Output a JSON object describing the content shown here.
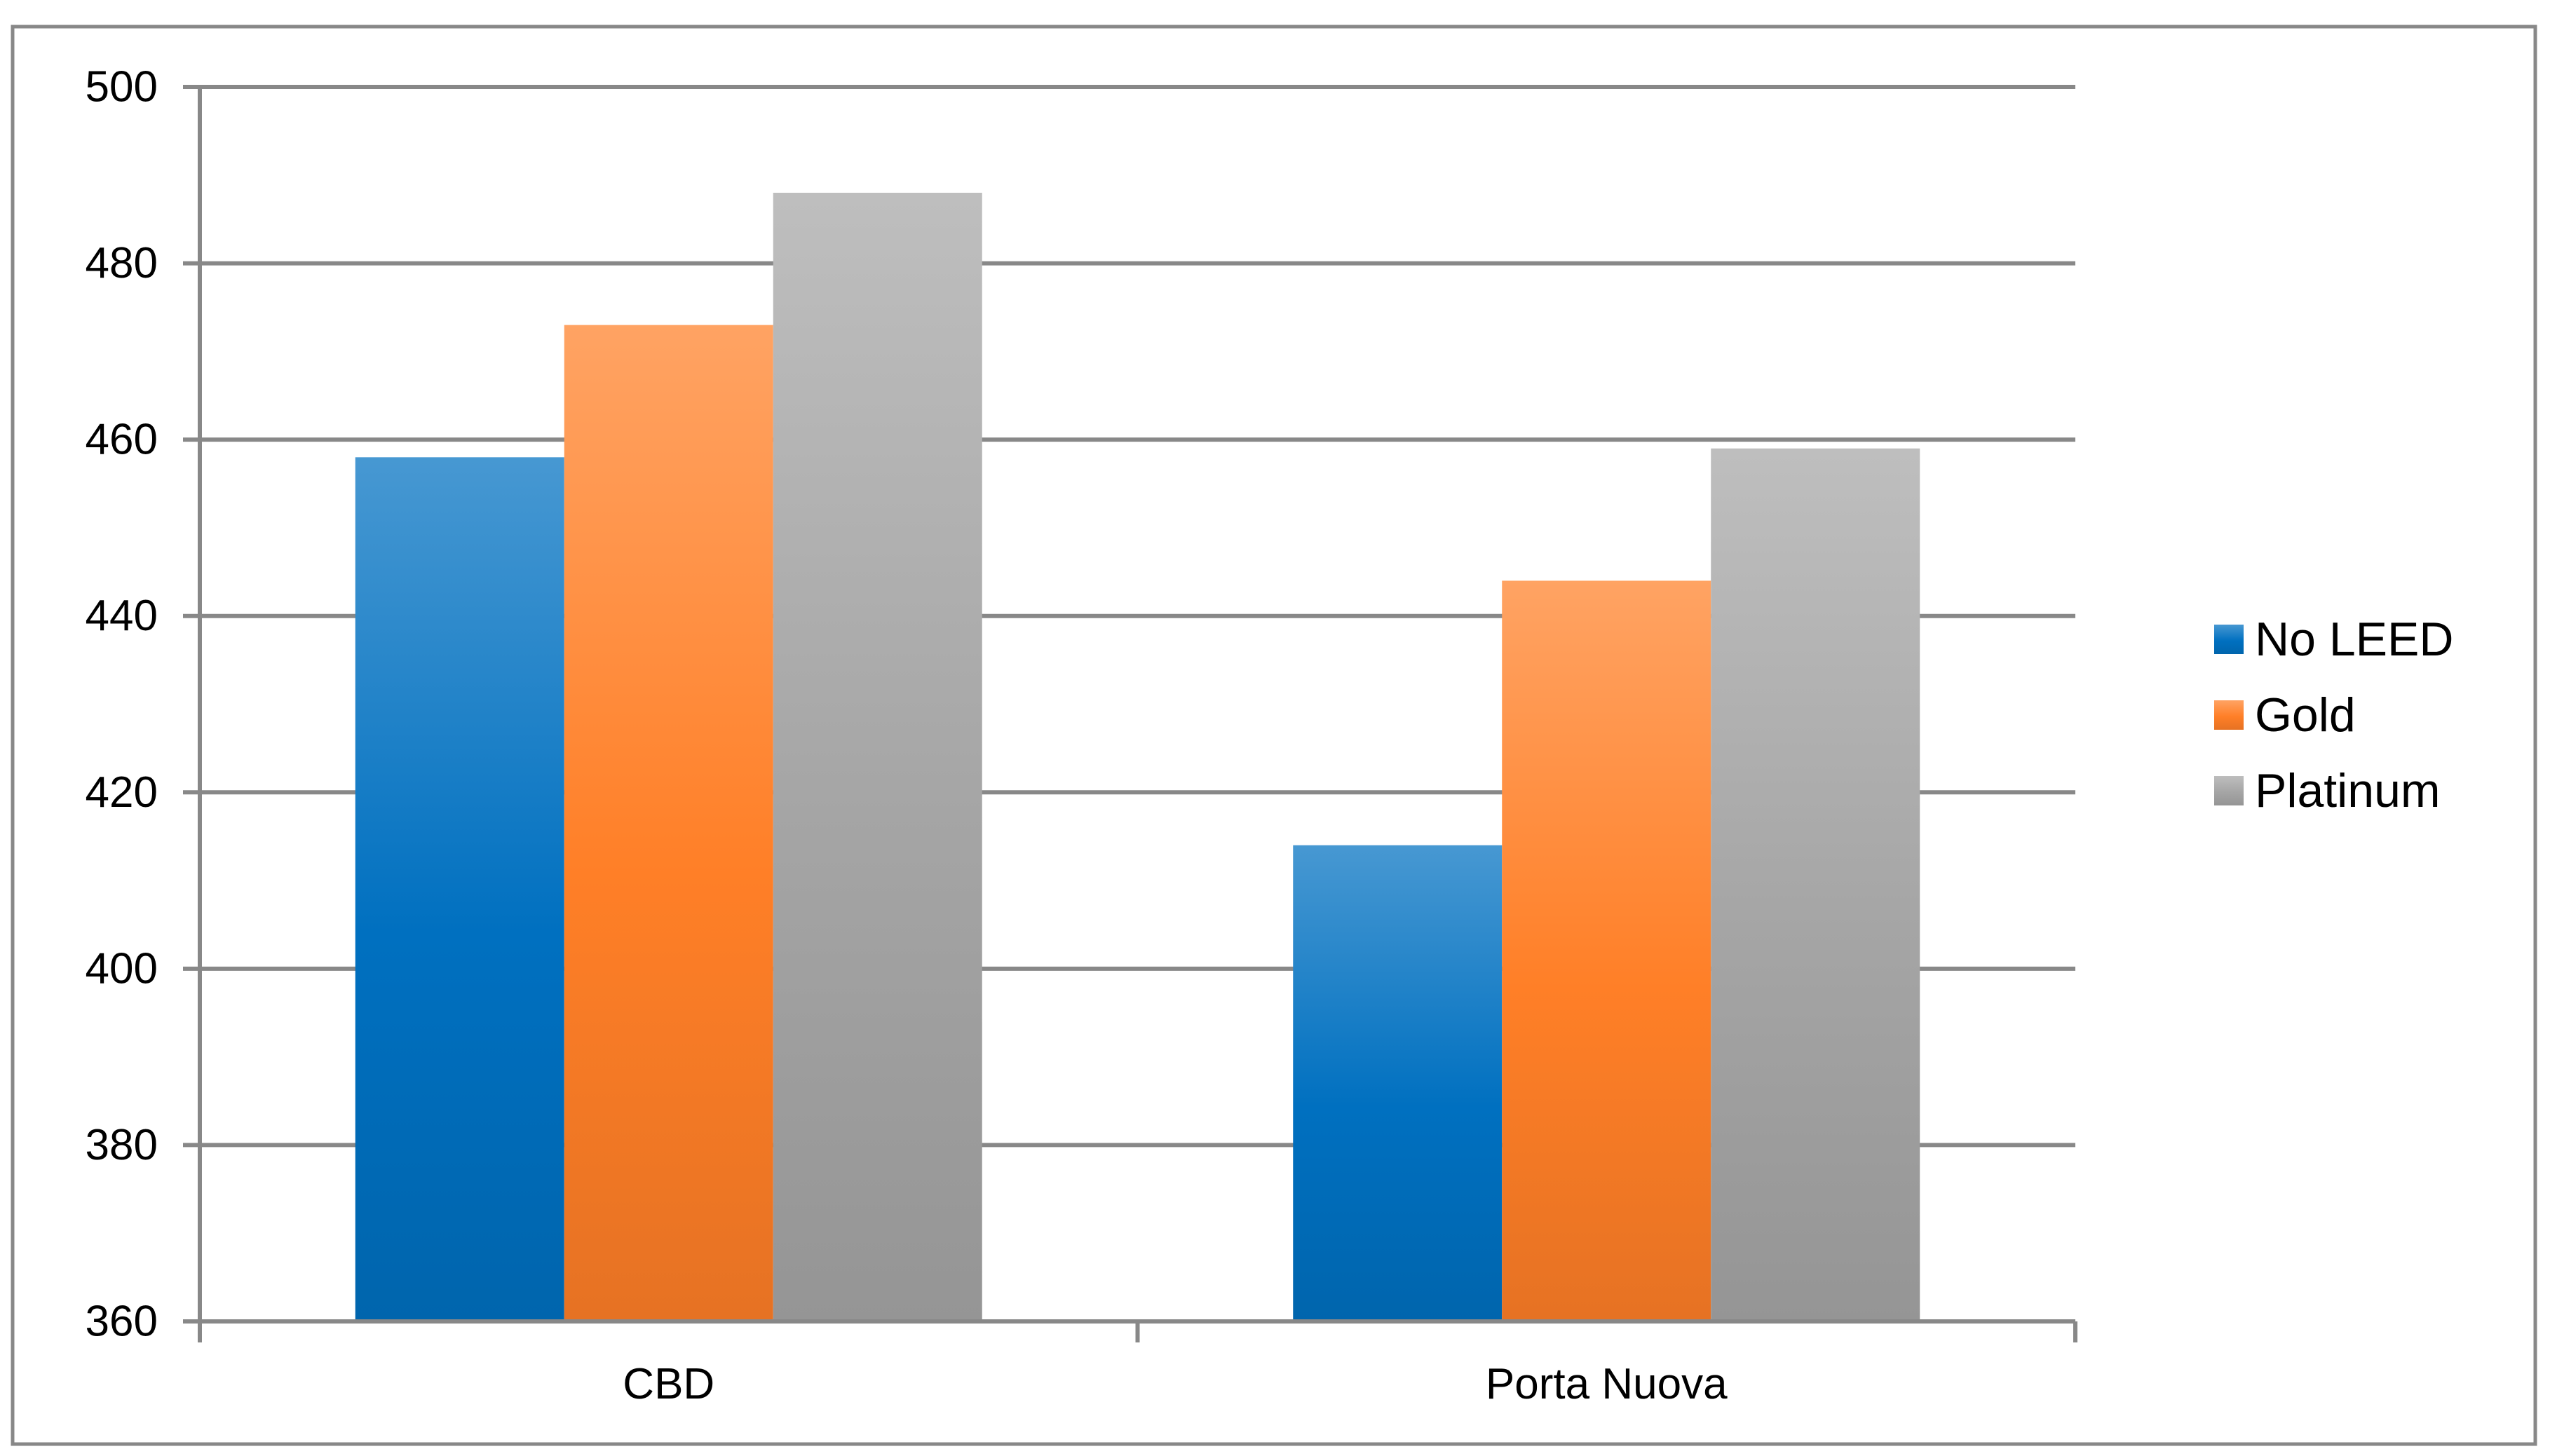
{
  "chart_data": {
    "type": "bar",
    "title": "",
    "xlabel": "",
    "ylabel": "",
    "categories": [
      "CBD",
      "Porta Nuova"
    ],
    "series": [
      {
        "name": "No LEED",
        "values": [
          458,
          414
        ],
        "color": "#0070C0"
      },
      {
        "name": "Gold",
        "values": [
          473,
          444
        ],
        "color": "#FF7F27"
      },
      {
        "name": "Platinum",
        "values": [
          488,
          459
        ],
        "color": "#A5A5A5"
      }
    ],
    "ylim": [
      360,
      500
    ],
    "yticks": [
      360,
      380,
      400,
      420,
      440,
      460,
      480,
      500
    ],
    "grid": true,
    "legend": "right",
    "colors": {
      "frame": "#888888",
      "grid": "#888888",
      "axis": "#888888"
    }
  }
}
